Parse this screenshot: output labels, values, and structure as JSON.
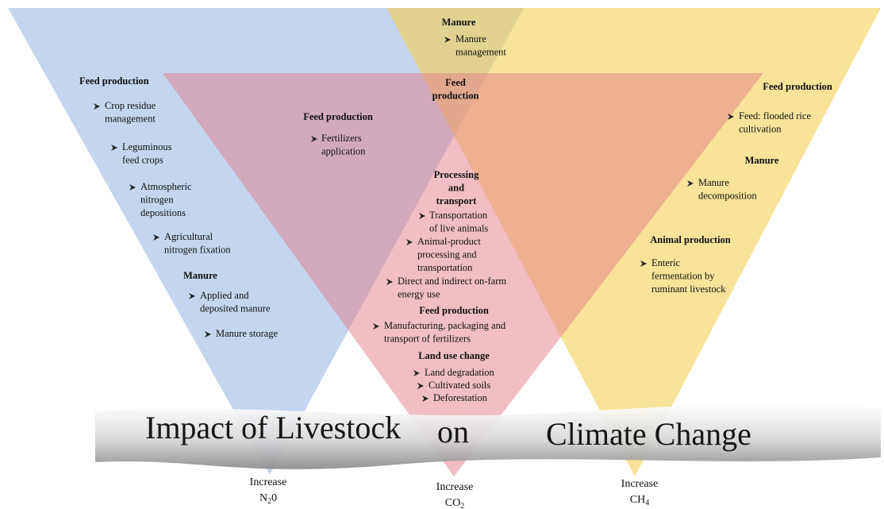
{
  "left_triangle": {
    "sections": [
      {
        "heading": [
          "Feed production"
        ],
        "items": [
          [
            "Crop residue",
            "management"
          ],
          [
            "Leguminous",
            "feed crops"
          ],
          [
            "Atmospheric",
            "nitrogen",
            "depositions"
          ],
          [
            "Agricultural",
            "nitrogen fixation"
          ]
        ]
      },
      {
        "heading": [
          "Manure"
        ],
        "items": [
          [
            "Applied and",
            "deposited manure"
          ],
          [
            "Manure storage"
          ]
        ]
      }
    ],
    "footer": {
      "text": "Increase",
      "formula": [
        "N",
        "2",
        "0"
      ]
    }
  },
  "top_overlap": {
    "sections": [
      {
        "heading": [
          "Manure"
        ],
        "items": [
          [
            "Manure",
            "management"
          ]
        ]
      },
      {
        "heading": [
          "Feed",
          "production"
        ],
        "items": []
      }
    ]
  },
  "middle_triangle": {
    "sections": [
      {
        "heading": [
          "Feed production"
        ],
        "items": [
          [
            "Fertilizers",
            "application"
          ]
        ]
      },
      {
        "heading": [
          "Processing",
          "and",
          "transport"
        ],
        "items": [
          [
            "Transportation",
            "of live animals"
          ],
          [
            "Animal-product",
            "processing and",
            "transportation"
          ],
          [
            "Direct and indirect on-farm",
            "energy use"
          ]
        ]
      },
      {
        "heading": [
          "Feed production"
        ],
        "items": [
          [
            "Manufacturing, packaging and",
            "transport of fertilizers"
          ]
        ]
      },
      {
        "heading": [
          "Land use change"
        ],
        "items": [
          [
            "Land degradation"
          ],
          [
            "Cultivated soils"
          ],
          [
            "Deforestation"
          ]
        ]
      }
    ],
    "footer": {
      "text": "Increase",
      "formula": [
        "CO",
        "2"
      ]
    }
  },
  "right_triangle": {
    "sections": [
      {
        "heading": [
          "Feed production"
        ],
        "items": [
          [
            "Feed: flooded rice",
            "cultivation"
          ]
        ]
      },
      {
        "heading": [
          "Manure"
        ],
        "items": [
          [
            "Manure",
            "decomposition"
          ]
        ]
      },
      {
        "heading": [
          "Animal production"
        ],
        "items": [
          [
            "Enteric",
            "fermentation by",
            "ruminant livestock"
          ]
        ]
      }
    ],
    "footer": {
      "text": "Increase",
      "formula": [
        "CH",
        "4"
      ]
    }
  },
  "banner": [
    "Impact of Livestock",
    "on",
    "Climate Change"
  ]
}
